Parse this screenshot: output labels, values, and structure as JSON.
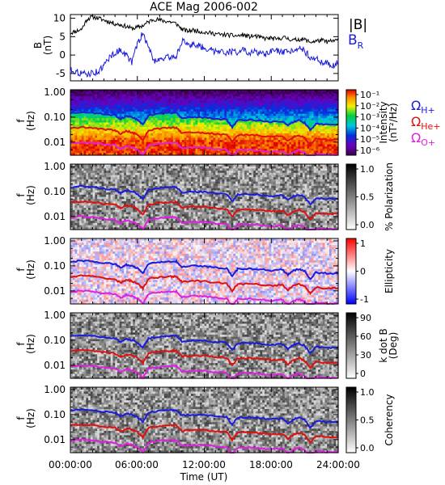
{
  "chart_data": {
    "type": "line",
    "title": "ACE Mag 2006-002",
    "x_axis": {
      "label": "Time (UT)",
      "tick_labels": [
        "00:00:00",
        "06:00:00",
        "12:00:00",
        "18:00:00",
        "24:00:00"
      ],
      "range_hours": [
        0,
        24
      ]
    },
    "panels": [
      {
        "id": "field",
        "type": "line",
        "ylabel": "B\n(nT)",
        "ylim": [
          -7,
          11
        ],
        "yticks": [
          "10",
          "5",
          "0",
          "-5"
        ],
        "ytick_values": [
          10,
          5,
          0,
          -5
        ],
        "legend": [
          "|B|",
          "B_R"
        ],
        "series": [
          {
            "name": "|B|",
            "color": "#000000",
            "x_hours": [
              0,
              0.5,
              1,
              1.5,
              2,
              2.5,
              3,
              3.5,
              4,
              4.5,
              5,
              5.5,
              6,
              6.5,
              7,
              7.5,
              8,
              8.5,
              9,
              9.5,
              10,
              10.5,
              11,
              11.5,
              12,
              12.5,
              13,
              13.5,
              14,
              14.5,
              15,
              15.5,
              16,
              16.5,
              17,
              17.5,
              18,
              18.5,
              19,
              19.5,
              20,
              20.5,
              21,
              21.5,
              22,
              22.5,
              23,
              23.5,
              24
            ],
            "y_nT": [
              6,
              6.5,
              7,
              9.8,
              10.4,
              10,
              9.5,
              9,
              8.5,
              8.2,
              7.8,
              7.2,
              7.5,
              8,
              9,
              9.8,
              9.5,
              9.2,
              9,
              8.5,
              7,
              6.5,
              6.8,
              6.5,
              6.2,
              6,
              5.8,
              5.5,
              5.5,
              5.3,
              5.2,
              5.5,
              5,
              5.2,
              4.8,
              4.5,
              4.6,
              4.2,
              4.8,
              4.5,
              4,
              4.3,
              4.2,
              3.5,
              3.8,
              4,
              3.6,
              3.8,
              4
            ]
          },
          {
            "name": "B_R",
            "color": "#1b1bdb",
            "x_hours": [
              0,
              0.5,
              1,
              1.5,
              2,
              2.5,
              3,
              3.5,
              4,
              4.5,
              5,
              5.5,
              6,
              6.5,
              7,
              7.5,
              8,
              8.5,
              9,
              9.5,
              10,
              10.5,
              11,
              11.5,
              12,
              12.5,
              13,
              13.5,
              14,
              14.5,
              15,
              15.5,
              16,
              16.5,
              17,
              17.5,
              18,
              18.5,
              19,
              19.5,
              20,
              20.5,
              21,
              21.5,
              22,
              22.5,
              23,
              23.5,
              24
            ],
            "y_nT": [
              -4,
              -4.5,
              -5,
              -5.2,
              -4.8,
              -4.5,
              -3,
              -0.5,
              0.5,
              1.5,
              0,
              -2,
              3,
              6,
              2,
              -1.5,
              -1,
              -0.8,
              -0.5,
              -0.3,
              4,
              2.5,
              3,
              2.5,
              2,
              1.5,
              1,
              1.5,
              0.5,
              1,
              0.8,
              1.5,
              0,
              1,
              0.5,
              0,
              1,
              1.2,
              0.5,
              0.8,
              1.5,
              2.2,
              1,
              -0.5,
              -1,
              -2,
              -2,
              -3,
              -2
            ]
          }
        ]
      },
      {
        "id": "intensity",
        "type": "heatmap",
        "ylabel": "f\n(Hz)",
        "yticks": [
          "1.00",
          "0.10",
          "0.01"
        ],
        "colorbar": {
          "label": "Intensity\n(nT²/Hz)",
          "scale": "log",
          "tick_labels": [
            "10⁻¹",
            "10⁻²",
            "10⁻³",
            "10⁻⁴",
            "10⁻⁵",
            "10⁻⁶"
          ],
          "palette": "rainbow"
        },
        "gyrofrequency_legend": [
          {
            "label": "ΩH+",
            "color": "#1b1bdb"
          },
          {
            "label": "ΩHe+",
            "color": "#e01010"
          },
          {
            "label": "ΩO+",
            "color": "#e020e0"
          }
        ]
      },
      {
        "id": "polarization",
        "type": "heatmap",
        "ylabel": "f\n(Hz)",
        "yticks": [
          "1.00",
          "0.10",
          "0.01"
        ],
        "colorbar": {
          "label": "% Polarization",
          "scale": "linear",
          "tick_labels": [
            "1.0",
            "0.5",
            "0.0"
          ],
          "palette": "gray"
        }
      },
      {
        "id": "ellipticity",
        "type": "heatmap",
        "ylabel": "f\n(Hz)",
        "yticks": [
          "1.00",
          "0.10",
          "0.01"
        ],
        "colorbar": {
          "label": "Ellipticity",
          "scale": "linear",
          "tick_labels": [
            "1",
            "0",
            "-1"
          ],
          "palette": "bwr"
        }
      },
      {
        "id": "kdotb",
        "type": "heatmap",
        "ylabel": "f\n(Hz)",
        "yticks": [
          "1.00",
          "0.10",
          "0.01"
        ],
        "colorbar": {
          "label": "k dot B\n(Deg)",
          "scale": "linear",
          "tick_labels": [
            "90",
            "60",
            "30",
            "0"
          ],
          "palette": "gray"
        }
      },
      {
        "id": "coherency",
        "type": "heatmap",
        "ylabel": "f\n(Hz)",
        "yticks": [
          "1.00",
          "0.10",
          "0.01"
        ],
        "colorbar": {
          "label": "Coherency",
          "scale": "linear",
          "tick_labels": [
            "1.0",
            "0.5",
            "0.0"
          ],
          "palette": "gray"
        }
      }
    ],
    "gyrofrequency_curves": [
      {
        "name": "ΩH+",
        "color": "#1b1bdb",
        "x_hours": [
          0,
          1,
          2,
          3,
          4,
          4.5,
          5,
          5.5,
          6,
          6.5,
          7,
          8,
          9,
          9.5,
          10,
          11,
          12,
          13,
          14,
          14.5,
          15,
          16,
          17,
          18,
          19,
          19.5,
          20,
          20.5,
          21,
          21.5,
          22,
          23,
          24
        ],
        "f_Hz": [
          0.145,
          0.16,
          0.15,
          0.13,
          0.12,
          0.085,
          0.11,
          0.1,
          0.08,
          0.05,
          0.12,
          0.14,
          0.15,
          0.15,
          0.09,
          0.1,
          0.095,
          0.085,
          0.08,
          0.04,
          0.075,
          0.078,
          0.072,
          0.065,
          0.07,
          0.045,
          0.065,
          0.075,
          0.06,
          0.03,
          0.055,
          0.05,
          0.052
        ]
      },
      {
        "name": "ΩHe+",
        "color": "#e01010",
        "x_hours": [
          0,
          1,
          2,
          3,
          4,
          4.5,
          5,
          5.5,
          6,
          6.5,
          7,
          8,
          9,
          9.5,
          10,
          11,
          12,
          13,
          14,
          14.5,
          15,
          16,
          17,
          18,
          19,
          19.5,
          20,
          20.5,
          21,
          21.5,
          22,
          23,
          24
        ],
        "f_Hz": [
          0.036,
          0.04,
          0.0375,
          0.0325,
          0.03,
          0.021,
          0.0275,
          0.025,
          0.02,
          0.0125,
          0.03,
          0.035,
          0.0375,
          0.0375,
          0.0225,
          0.025,
          0.024,
          0.021,
          0.02,
          0.01,
          0.019,
          0.0195,
          0.018,
          0.016,
          0.0175,
          0.011,
          0.016,
          0.019,
          0.015,
          0.0075,
          0.014,
          0.0125,
          0.013
        ]
      },
      {
        "name": "ΩO+",
        "color": "#e020e0",
        "x_hours": [
          0,
          1,
          2,
          3,
          4,
          4.5,
          5,
          5.5,
          6,
          6.5,
          7,
          8,
          9,
          9.5,
          10,
          11,
          12,
          13,
          14,
          14.5,
          15,
          16,
          17,
          18,
          19,
          19.5,
          20,
          20.5,
          21,
          21.5,
          22,
          23,
          24
        ],
        "f_Hz": [
          0.009,
          0.01,
          0.0094,
          0.0081,
          0.0075,
          0.0053,
          0.0069,
          0.0062,
          0.005,
          0.0031,
          0.0075,
          0.0088,
          0.0094,
          0.0094,
          0.0056,
          0.0062,
          0.006,
          0.0053,
          0.005,
          0.0025,
          0.0047,
          0.0049,
          0.0045,
          0.004,
          0.0044,
          0.0028,
          0.004,
          0.0047,
          0.0037,
          0.0019,
          0.0035,
          0.0031,
          0.0032
        ]
      }
    ]
  }
}
